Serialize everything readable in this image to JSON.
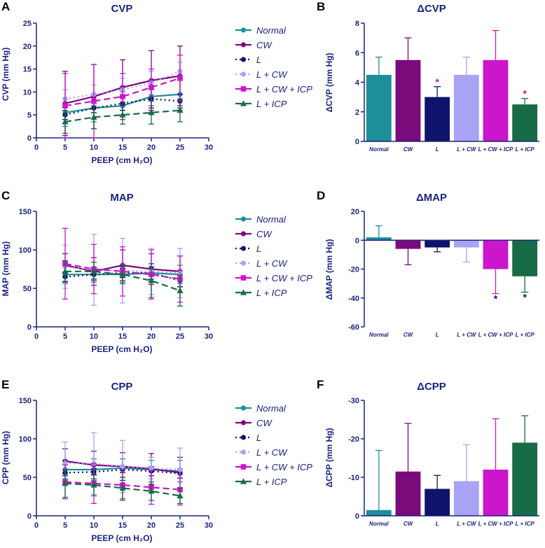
{
  "series_styles": [
    {
      "name": "Normal",
      "color": "#1c8f9b",
      "dash": "",
      "marker": "circle"
    },
    {
      "name": "CW",
      "color": "#7b0a7b",
      "dash": "",
      "marker": "circle"
    },
    {
      "name": "L",
      "color": "#10136b",
      "dash": "2,4",
      "marker": "circle"
    },
    {
      "name": "L + CW",
      "color": "#a9a3f5",
      "dash": "2,4",
      "marker": "circle"
    },
    {
      "name": "L + CW + ICP",
      "color": "#cc16cc",
      "dash": "9,5",
      "marker": "square"
    },
    {
      "name": "L + ICP",
      "color": "#176b46",
      "dash": "9,5",
      "marker": "triangle"
    }
  ],
  "chart_data": [
    {
      "id": "A",
      "letter": "A",
      "type": "line",
      "title": "CVP",
      "xlabel": "PEEP (cm H₂O)",
      "ylabel": "CVP (mm Hg)",
      "xlim": [
        0,
        30
      ],
      "ylim": [
        0,
        25
      ],
      "xticks": [
        0,
        5,
        10,
        15,
        20,
        25,
        30
      ],
      "yticks": [
        0,
        5,
        10,
        15,
        20,
        25
      ],
      "x": [
        5,
        10,
        15,
        20,
        25
      ],
      "series": [
        {
          "name": "Normal",
          "values": [
            5.5,
            6.5,
            7.0,
            9.0,
            9.5
          ],
          "errors": [
            3.0,
            3.0,
            3.0,
            3.5,
            3.5
          ]
        },
        {
          "name": "CW",
          "values": [
            7.5,
            9.0,
            11.0,
            12.5,
            13.5
          ],
          "errors": [
            7.0,
            7.0,
            6.0,
            6.5,
            6.5
          ]
        },
        {
          "name": "L",
          "values": [
            5.0,
            6.5,
            7.5,
            8.5,
            8.0
          ],
          "errors": [
            1.0,
            1.0,
            1.5,
            2.0,
            1.5
          ]
        },
        {
          "name": "L + CW",
          "values": [
            8.5,
            9.5,
            10.5,
            12.0,
            14.5
          ],
          "errors": [
            2.0,
            2.0,
            2.5,
            2.5,
            2.0
          ]
        },
        {
          "name": "L + CW + ICP",
          "values": [
            7.0,
            8.0,
            9.0,
            11.0,
            13.0
          ],
          "errors": [
            7.0,
            8.0,
            5.0,
            4.0,
            5.0
          ]
        },
        {
          "name": "L + ICP",
          "values": [
            3.5,
            4.5,
            5.0,
            5.5,
            6.0
          ],
          "errors": [
            2.5,
            2.5,
            2.0,
            2.5,
            2.5
          ]
        }
      ]
    },
    {
      "id": "B",
      "letter": "B",
      "type": "bar",
      "title": "ΔCVP",
      "ylabel": "ΔCVP (mm Hg)",
      "ylim": [
        0,
        8
      ],
      "yticks": [
        0,
        2,
        4,
        6,
        8
      ],
      "categories": [
        "Normal",
        "CW",
        "L",
        "L + CW",
        "L + CW + ICP",
        "L + ICP"
      ],
      "values": [
        4.5,
        5.5,
        3.0,
        4.5,
        5.5,
        2.5
      ],
      "errors": [
        1.2,
        1.5,
        0.7,
        1.2,
        2.0,
        0.4
      ],
      "significance": [
        {
          "category": "L",
          "mark": "*",
          "color": "#b0208f"
        },
        {
          "category": "L + ICP",
          "mark": "*",
          "color": "#b0208f"
        }
      ]
    },
    {
      "id": "C",
      "letter": "C",
      "type": "line",
      "title": "MAP",
      "xlabel": "PEEP (cm H₂O)",
      "ylabel": "MAP (mm Hg)",
      "xlim": [
        0,
        30
      ],
      "ylim": [
        0,
        150
      ],
      "xticks": [
        0,
        5,
        10,
        15,
        20,
        25,
        30
      ],
      "yticks": [
        0,
        50,
        100,
        150
      ],
      "x": [
        5,
        10,
        15,
        20,
        25
      ],
      "series": [
        {
          "name": "Normal",
          "values": [
            68,
            68,
            68,
            70,
            68
          ],
          "errors": [
            12,
            10,
            10,
            12,
            12
          ]
        },
        {
          "name": "CW",
          "values": [
            80,
            72,
            80,
            75,
            72
          ],
          "errors": [
            15,
            18,
            20,
            20,
            20
          ]
        },
        {
          "name": "L",
          "values": [
            65,
            68,
            70,
            70,
            60
          ],
          "errors": [
            6,
            6,
            6,
            8,
            8
          ]
        },
        {
          "name": "L + CW",
          "values": [
            78,
            74,
            73,
            72,
            70
          ],
          "errors": [
            28,
            46,
            42,
            30,
            32
          ]
        },
        {
          "name": "L + CW + ICP",
          "values": [
            82,
            75,
            72,
            68,
            62
          ],
          "errors": [
            46,
            32,
            32,
            32,
            30
          ]
        },
        {
          "name": "L + ICP",
          "values": [
            72,
            72,
            68,
            60,
            47
          ],
          "errors": [
            14,
            12,
            12,
            22,
            20
          ]
        }
      ]
    },
    {
      "id": "D",
      "letter": "D",
      "type": "bar",
      "title": "ΔMAP",
      "ylabel": "ΔMAP (mm Hg)",
      "ylim": [
        -60,
        20
      ],
      "yticks": [
        -60,
        -40,
        -20,
        0,
        20
      ],
      "categories": [
        "Normal",
        "CW",
        "L",
        "L + CW",
        "L + CW + ICP",
        "L + ICP"
      ],
      "values": [
        2,
        -6,
        -5,
        -5,
        -20,
        -25
      ],
      "errors": [
        8,
        11,
        3,
        10,
        17,
        11
      ],
      "significance": [
        {
          "category": "L + CW + ICP",
          "mark": "*",
          "color": "#10136b"
        },
        {
          "category": "L + ICP",
          "mark": "*",
          "color": "#10136b"
        }
      ]
    },
    {
      "id": "E",
      "letter": "E",
      "type": "line",
      "title": "CPP",
      "xlabel": "PEEP (cm H₂O)",
      "ylabel": "CPP (mm Hg)",
      "xlim": [
        0,
        30
      ],
      "ylim": [
        0,
        150
      ],
      "xticks": [
        0,
        5,
        10,
        15,
        20,
        25,
        30
      ],
      "yticks": [
        0,
        50,
        100,
        150
      ],
      "x": [
        5,
        10,
        15,
        20,
        25
      ],
      "series": [
        {
          "name": "Normal",
          "values": [
            60,
            60,
            62,
            60,
            58
          ],
          "errors": [
            12,
            14,
            12,
            12,
            14
          ]
        },
        {
          "name": "CW",
          "values": [
            71,
            66,
            64,
            61,
            56
          ],
          "errors": [
            16,
            18,
            18,
            20,
            20
          ]
        },
        {
          "name": "L",
          "values": [
            56,
            57,
            60,
            58,
            55
          ],
          "errors": [
            4,
            4,
            4,
            6,
            6
          ]
        },
        {
          "name": "L + CW",
          "values": [
            68,
            68,
            64,
            62,
            60
          ],
          "errors": [
            28,
            40,
            34,
            14,
            28
          ]
        },
        {
          "name": "L + CW + ICP",
          "values": [
            44,
            42,
            40,
            37,
            34
          ],
          "errors": [
            22,
            26,
            20,
            22,
            20
          ]
        },
        {
          "name": "L + ICP",
          "values": [
            42,
            40,
            36,
            32,
            26
          ],
          "errors": [
            18,
            14,
            14,
            12,
            10
          ]
        }
      ]
    },
    {
      "id": "F",
      "letter": "F",
      "type": "bar",
      "title": "ΔCPP",
      "ylabel": "ΔCPP (mm Hg)",
      "ylim": [
        0,
        -30
      ],
      "yticks": [
        0,
        -10,
        -20,
        -30
      ],
      "categories": [
        "Normal",
        "CW",
        "L",
        "L + CW",
        "L + CW + ICP",
        "L + ICP"
      ],
      "values": [
        -1.5,
        -11.5,
        -7,
        -9,
        -12,
        -19
      ],
      "errors": [
        15.5,
        12.5,
        3.5,
        9.5,
        13.2,
        7
      ],
      "significance": []
    }
  ]
}
